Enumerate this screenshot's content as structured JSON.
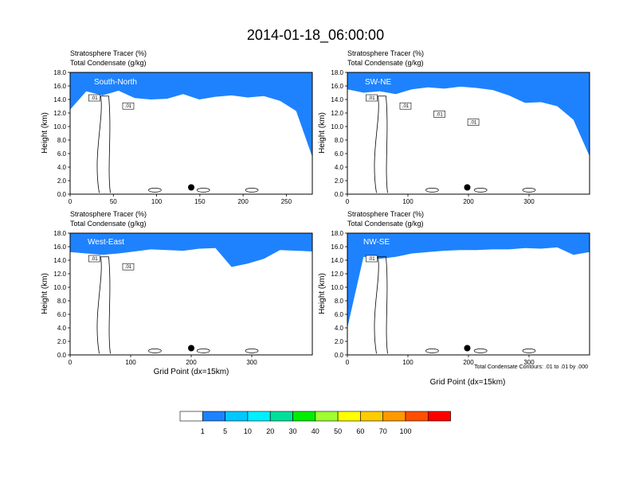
{
  "title": "2014-01-18_06:00:00",
  "color_map": {
    "levels": [
      "1",
      "5",
      "10",
      "20",
      "30",
      "40",
      "50",
      "60",
      "70",
      "100"
    ],
    "colors": [
      "#ffffff",
      "#1e82ff",
      "#00c8ff",
      "#00f0ff",
      "#00e09a",
      "#00ee00",
      "#a0ff30",
      "#ffff00",
      "#ffcc00",
      "#ff9900",
      "#ff5000",
      "#ff0000"
    ]
  },
  "chart_data": [
    {
      "type": "heatmap",
      "label": "South-North",
      "subtitle_1": "Stratosphere Tracer   (%)",
      "subtitle_2": "Total Condensate   (g/kg)",
      "ylabel": "Height (km)",
      "xlabel": "",
      "xlim": [
        0,
        280
      ],
      "ylim": [
        0,
        18
      ],
      "xticks": [
        "0",
        "50",
        "100",
        "150",
        "200",
        "250"
      ],
      "yticks": [
        "0.0",
        "2.0",
        "4.0",
        "6.0",
        "8.0",
        "10.0",
        "12.0",
        "14.0",
        "16.0",
        "18.0"
      ],
      "contour_labels": [
        ".01",
        ".01"
      ],
      "marker_x": 140,
      "tropopause_km": [
        12.5,
        15.2,
        14.6,
        15.3,
        14.2,
        14.0,
        14.1,
        14.8,
        14.0,
        14.4,
        14.6,
        14.3,
        14.5,
        13.8,
        12.3,
        5.5
      ],
      "footnote": "",
      "bottom_xlabel": ""
    },
    {
      "type": "heatmap",
      "label": "SW-NE",
      "subtitle_1": "Stratosphere Tracer   (%)",
      "subtitle_2": "Total Condensate   (g/kg)",
      "ylabel": "Height (km)",
      "xlabel": "",
      "xlim": [
        0,
        400
      ],
      "ylim": [
        0,
        18
      ],
      "xticks": [
        "0",
        "100",
        "200",
        "300"
      ],
      "yticks": [
        "0.0",
        "2.0",
        "4.0",
        "6.0",
        "8.0",
        "10.0",
        "12.0",
        "14.0",
        "16.0",
        "18.0"
      ],
      "contour_labels": [
        ".01",
        ".01",
        ".01",
        ".01"
      ],
      "marker_x": 198,
      "tropopause_km": [
        15.5,
        15.0,
        15.2,
        14.8,
        15.5,
        15.8,
        15.6,
        15.9,
        15.7,
        15.4,
        14.6,
        13.5,
        13.6,
        13.0,
        11.0,
        5.6
      ],
      "footnote": "",
      "bottom_xlabel": ""
    },
    {
      "type": "heatmap",
      "label": "West-East",
      "subtitle_1": "Stratosphere Tracer   (%)",
      "subtitle_2": "Total Condensate   (g/kg)",
      "ylabel": "Height (km)",
      "xlabel": "Grid Point (dx=15km)",
      "xlim": [
        0,
        400
      ],
      "ylim": [
        0,
        18
      ],
      "xticks": [
        "0",
        "100",
        "200",
        "300"
      ],
      "yticks": [
        "0.0",
        "2.0",
        "4.0",
        "6.0",
        "8.0",
        "10.0",
        "12.0",
        "14.0",
        "16.0",
        "18.0"
      ],
      "contour_labels": [
        ".01",
        ".01"
      ],
      "marker_x": 200,
      "tropopause_km": [
        15.2,
        15.0,
        14.8,
        15.0,
        15.3,
        15.6,
        15.5,
        15.4,
        15.7,
        15.8,
        13.0,
        13.5,
        14.2,
        15.5,
        15.4,
        15.3
      ],
      "footnote": "",
      "bottom_xlabel": ""
    },
    {
      "type": "heatmap",
      "label": "NW-SE",
      "subtitle_1": "Stratosphere Tracer   (%)",
      "subtitle_2": "Total Condensate   (g/kg)",
      "ylabel": "Height (km)",
      "xlabel": "",
      "xlim": [
        0,
        400
      ],
      "ylim": [
        0,
        18
      ],
      "xticks": [
        "0",
        "100",
        "200",
        "300"
      ],
      "yticks": [
        "0.0",
        "2.0",
        "4.0",
        "6.0",
        "8.0",
        "10.0",
        "12.0",
        "14.0",
        "16.0",
        "18.0"
      ],
      "contour_labels": [
        ".01"
      ],
      "marker_x": 198,
      "tropopause_km": [
        4.0,
        14.5,
        14.2,
        14.5,
        15.0,
        15.2,
        15.4,
        15.5,
        15.5,
        15.6,
        15.6,
        15.8,
        15.7,
        15.9,
        14.8,
        15.2
      ],
      "footnote": "Total Condensate Contours: .01 to .01 by .000",
      "bottom_xlabel": "Grid Point (dx=15km)"
    }
  ]
}
